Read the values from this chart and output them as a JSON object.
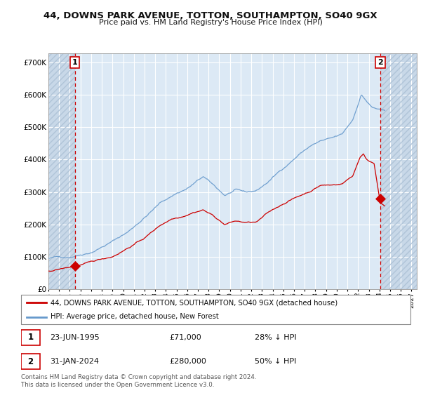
{
  "title_line1": "44, DOWNS PARK AVENUE, TOTTON, SOUTHAMPTON, SO40 9GX",
  "title_line2": "Price paid vs. HM Land Registry's House Price Index (HPI)",
  "background_color": "#ffffff",
  "plot_bg_color": "#dce9f5",
  "hatch_bg_color": "#c8d8e8",
  "grid_color": "#ffffff",
  "hpi_color": "#6699cc",
  "price_color": "#cc0000",
  "annotation_color": "#cc0000",
  "ylim": [
    0,
    730000
  ],
  "yticks": [
    0,
    100000,
    200000,
    300000,
    400000,
    500000,
    600000,
    700000
  ],
  "ytick_labels": [
    "£0",
    "£100K",
    "£200K",
    "£300K",
    "£400K",
    "£500K",
    "£600K",
    "£700K"
  ],
  "xlim_start": 1993.0,
  "xlim_end": 2027.5,
  "xtick_years": [
    1993,
    1994,
    1995,
    1996,
    1997,
    1998,
    1999,
    2000,
    2001,
    2002,
    2003,
    2004,
    2005,
    2006,
    2007,
    2008,
    2009,
    2010,
    2011,
    2012,
    2013,
    2014,
    2015,
    2016,
    2017,
    2018,
    2019,
    2020,
    2021,
    2022,
    2023,
    2024,
    2025,
    2026,
    2027
  ],
  "sale1_x": 1995.47,
  "sale1_y": 71000,
  "sale1_label": "1",
  "sale2_x": 2024.08,
  "sale2_y": 280000,
  "sale2_label": "2",
  "legend_line1": "44, DOWNS PARK AVENUE, TOTTON, SOUTHAMPTON, SO40 9GX (detached house)",
  "legend_line2": "HPI: Average price, detached house, New Forest",
  "annot1_date": "23-JUN-1995",
  "annot1_price": "£71,000",
  "annot1_hpi": "28% ↓ HPI",
  "annot2_date": "31-JAN-2024",
  "annot2_price": "£280,000",
  "annot2_hpi": "50% ↓ HPI",
  "footer": "Contains HM Land Registry data © Crown copyright and database right 2024.\nThis data is licensed under the Open Government Licence v3.0."
}
